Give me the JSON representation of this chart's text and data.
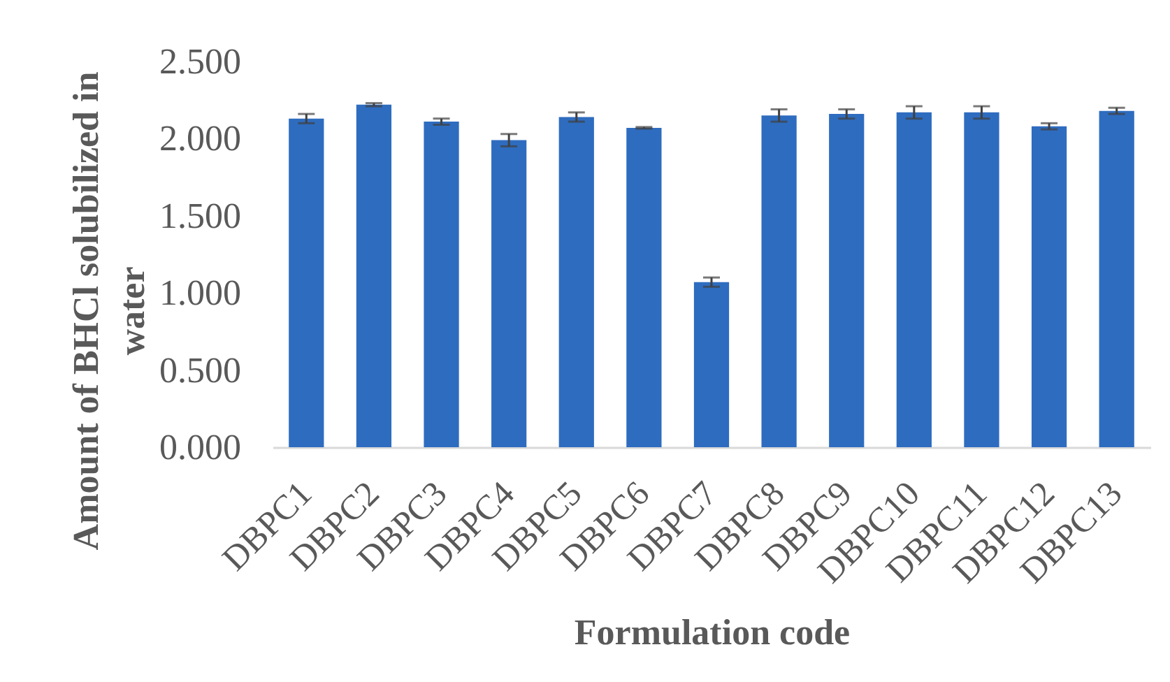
{
  "chart_data": {
    "type": "bar",
    "xlabel": "Formulation code",
    "ylabel": "Amount of BHCl solubilized in water",
    "categories": [
      "DBPC1",
      "DBPC2",
      "DBPC3",
      "DBPC4",
      "DBPC5",
      "DBPC6",
      "DBPC7",
      "DBPC8",
      "DBPC9",
      "DBPC10",
      "DBPC11",
      "DBPC12",
      "DBPC13"
    ],
    "values": [
      2.13,
      2.22,
      2.11,
      1.99,
      2.14,
      2.07,
      1.07,
      2.15,
      2.16,
      2.17,
      2.17,
      2.08,
      2.18
    ],
    "errors": [
      0.03,
      0.01,
      0.02,
      0.04,
      0.03,
      0.005,
      0.03,
      0.04,
      0.03,
      0.04,
      0.04,
      0.02,
      0.02
    ],
    "color": "#2e6cbf",
    "ylim": [
      0,
      2.5
    ],
    "yticks": [
      {
        "value": 0,
        "label": "0.000"
      },
      {
        "value": 0.5,
        "label": "0.500"
      },
      {
        "value": 1,
        "label": "1.000"
      },
      {
        "value": 1.5,
        "label": "1.500"
      },
      {
        "value": 2,
        "label": "2.000"
      },
      {
        "value": 2.5,
        "label": "2.500"
      }
    ],
    "grid": false
  }
}
